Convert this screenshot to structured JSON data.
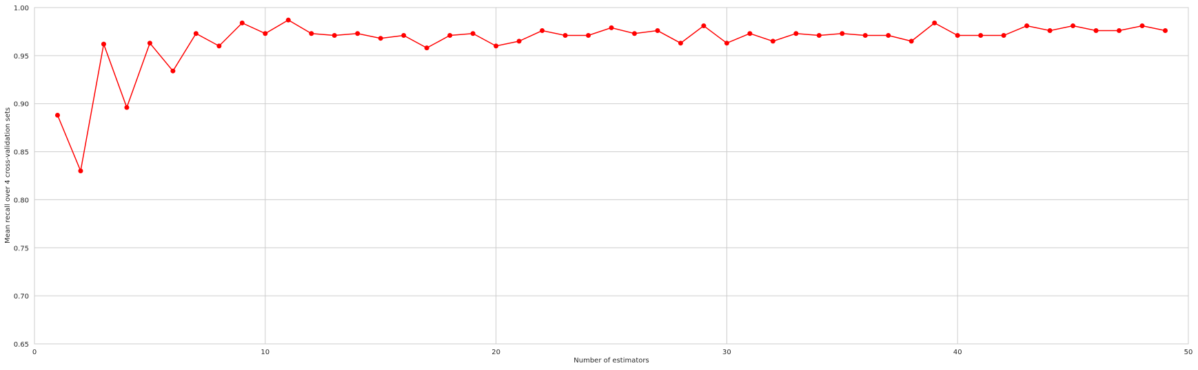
{
  "chart_data": {
    "type": "line",
    "title": "",
    "xlabel": "Number of estimators",
    "ylabel": "Mean recall over 4 cross-validation sets",
    "xlim": [
      0,
      50
    ],
    "ylim": [
      0.65,
      1.0
    ],
    "xticks": [
      0,
      10,
      20,
      30,
      40,
      50
    ],
    "xtick_labels": [
      "0",
      "10",
      "20",
      "30",
      "40",
      "50"
    ],
    "yticks": [
      0.65,
      0.7,
      0.75,
      0.8,
      0.85,
      0.9,
      0.95,
      1.0
    ],
    "ytick_labels": [
      "0.65",
      "0.70",
      "0.75",
      "0.80",
      "0.85",
      "0.90",
      "0.95",
      "1.00"
    ],
    "grid": true,
    "series": [
      {
        "color": "#ff0000",
        "marker": "circle",
        "x": [
          1,
          2,
          3,
          4,
          5,
          6,
          7,
          8,
          9,
          10,
          11,
          12,
          13,
          14,
          15,
          16,
          17,
          18,
          19,
          20,
          21,
          22,
          23,
          24,
          25,
          26,
          27,
          28,
          29,
          30,
          31,
          32,
          33,
          34,
          35,
          36,
          37,
          38,
          39,
          40,
          41,
          42,
          43,
          44,
          45,
          46,
          47,
          48,
          49
        ],
        "y": [
          0.888,
          0.83,
          0.962,
          0.896,
          0.963,
          0.934,
          0.973,
          0.96,
          0.984,
          0.973,
          0.987,
          0.973,
          0.971,
          0.973,
          0.968,
          0.971,
          0.958,
          0.971,
          0.973,
          0.96,
          0.965,
          0.976,
          0.971,
          0.971,
          0.979,
          0.973,
          0.976,
          0.963,
          0.981,
          0.963,
          0.973,
          0.965,
          0.973,
          0.971,
          0.973,
          0.971,
          0.971,
          0.965,
          0.984,
          0.971,
          0.971,
          0.971,
          0.981,
          0.976,
          0.981,
          0.976,
          0.976,
          0.981,
          0.976
        ]
      }
    ]
  }
}
